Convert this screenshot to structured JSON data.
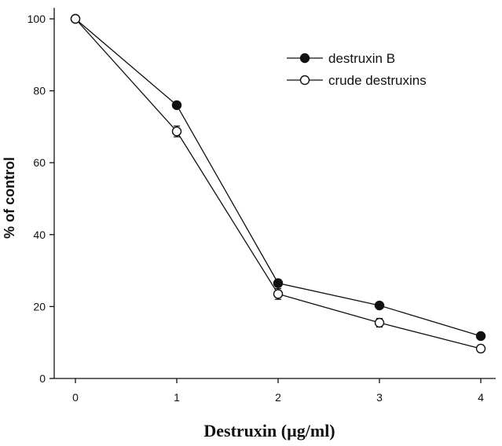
{
  "chart_data": {
    "type": "line",
    "xlabel": "Destruxin (µg/ml)",
    "ylabel": "% of control",
    "x": [
      0,
      1,
      2,
      3,
      4
    ],
    "xlim": [
      0,
      4
    ],
    "ylim": [
      0,
      100
    ],
    "xticks": [
      "0",
      "1",
      "2",
      "3",
      "4"
    ],
    "yticks": [
      "0",
      "20",
      "40",
      "60",
      "80",
      "100"
    ],
    "grid": false,
    "legend_position": "top-right",
    "series": [
      {
        "name": "destruxin B",
        "marker": "filled-circle",
        "color": "#111111",
        "values": [
          100,
          76,
          26.5,
          20.3,
          11.8
        ],
        "errors": [
          0,
          0.8,
          1.0,
          0.8,
          0.8
        ]
      },
      {
        "name": "crude destruxins",
        "marker": "open-circle",
        "color": "#111111",
        "values": [
          100,
          68.7,
          23.5,
          15.5,
          8.3
        ],
        "errors": [
          0,
          1.5,
          1.5,
          1.2,
          1.0
        ]
      }
    ]
  }
}
